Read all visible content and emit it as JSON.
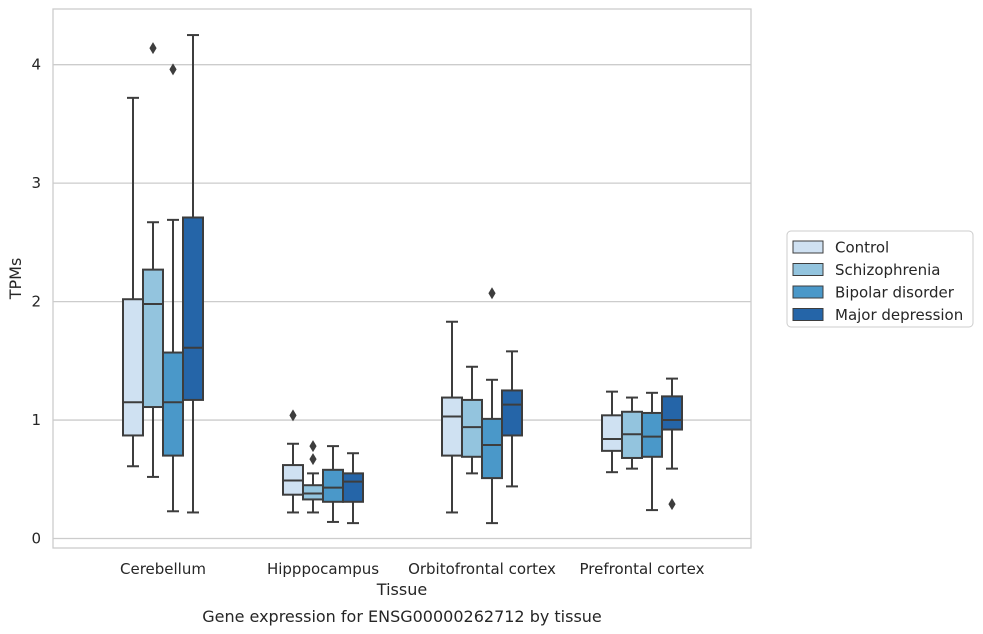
{
  "chart_data": {
    "type": "box",
    "xlabel": "Tissue",
    "ylabel": "TPMs",
    "caption": "Gene expression for ENSG00000262712 by tissue",
    "ylim": [
      -0.08,
      4.47
    ],
    "yticks": [
      0,
      1,
      2,
      3,
      4
    ],
    "grid": true,
    "legend_position": "right",
    "categories": [
      "Cerebellum",
      "Hipppocampus",
      "Orbitofrontal cortex",
      "Prefrontal cortex"
    ],
    "series": [
      {
        "name": "Control",
        "color": "#cfe1f2",
        "boxes": [
          {
            "whisker_low": 0.61,
            "q1": 0.87,
            "median": 1.15,
            "q3": 2.02,
            "whisker_high": 3.72,
            "outliers": []
          },
          {
            "whisker_low": 0.22,
            "q1": 0.37,
            "median": 0.49,
            "q3": 0.62,
            "whisker_high": 0.8,
            "outliers": [
              1.04
            ]
          },
          {
            "whisker_low": 0.22,
            "q1": 0.7,
            "median": 1.03,
            "q3": 1.19,
            "whisker_high": 1.83,
            "outliers": []
          },
          {
            "whisker_low": 0.56,
            "q1": 0.74,
            "median": 0.84,
            "q3": 1.04,
            "whisker_high": 1.24,
            "outliers": []
          }
        ]
      },
      {
        "name": "Schizophrenia",
        "color": "#93c4de",
        "boxes": [
          {
            "whisker_low": 0.52,
            "q1": 1.11,
            "median": 1.98,
            "q3": 2.27,
            "whisker_high": 2.67,
            "outliers": [
              4.14
            ]
          },
          {
            "whisker_low": 0.22,
            "q1": 0.33,
            "median": 0.38,
            "q3": 0.45,
            "whisker_high": 0.55,
            "outliers": [
              0.67,
              0.78
            ]
          },
          {
            "whisker_low": 0.55,
            "q1": 0.69,
            "median": 0.94,
            "q3": 1.17,
            "whisker_high": 1.45,
            "outliers": []
          },
          {
            "whisker_low": 0.59,
            "q1": 0.68,
            "median": 0.88,
            "q3": 1.07,
            "whisker_high": 1.19,
            "outliers": []
          }
        ]
      },
      {
        "name": "Bipolar disorder",
        "color": "#4a98c9",
        "boxes": [
          {
            "whisker_low": 0.23,
            "q1": 0.7,
            "median": 1.15,
            "q3": 1.57,
            "whisker_high": 2.69,
            "outliers": [
              3.96
            ]
          },
          {
            "whisker_low": 0.14,
            "q1": 0.31,
            "median": 0.43,
            "q3": 0.58,
            "whisker_high": 0.78,
            "outliers": []
          },
          {
            "whisker_low": 0.13,
            "q1": 0.51,
            "median": 0.79,
            "q3": 1.01,
            "whisker_high": 1.34,
            "outliers": [
              2.07
            ]
          },
          {
            "whisker_low": 0.24,
            "q1": 0.69,
            "median": 0.86,
            "q3": 1.06,
            "whisker_high": 1.23,
            "outliers": []
          }
        ]
      },
      {
        "name": "Major depression",
        "color": "#2565a8",
        "boxes": [
          {
            "whisker_low": 0.22,
            "q1": 1.17,
            "median": 1.61,
            "q3": 2.71,
            "whisker_high": 4.25,
            "outliers": []
          },
          {
            "whisker_low": 0.13,
            "q1": 0.31,
            "median": 0.48,
            "q3": 0.55,
            "whisker_high": 0.72,
            "outliers": []
          },
          {
            "whisker_low": 0.44,
            "q1": 0.87,
            "median": 1.13,
            "q3": 1.25,
            "whisker_high": 1.58,
            "outliers": []
          },
          {
            "whisker_low": 0.59,
            "q1": 0.92,
            "median": 1.0,
            "q3": 1.2,
            "whisker_high": 1.35,
            "outliers": [
              0.29
            ]
          }
        ]
      }
    ]
  }
}
